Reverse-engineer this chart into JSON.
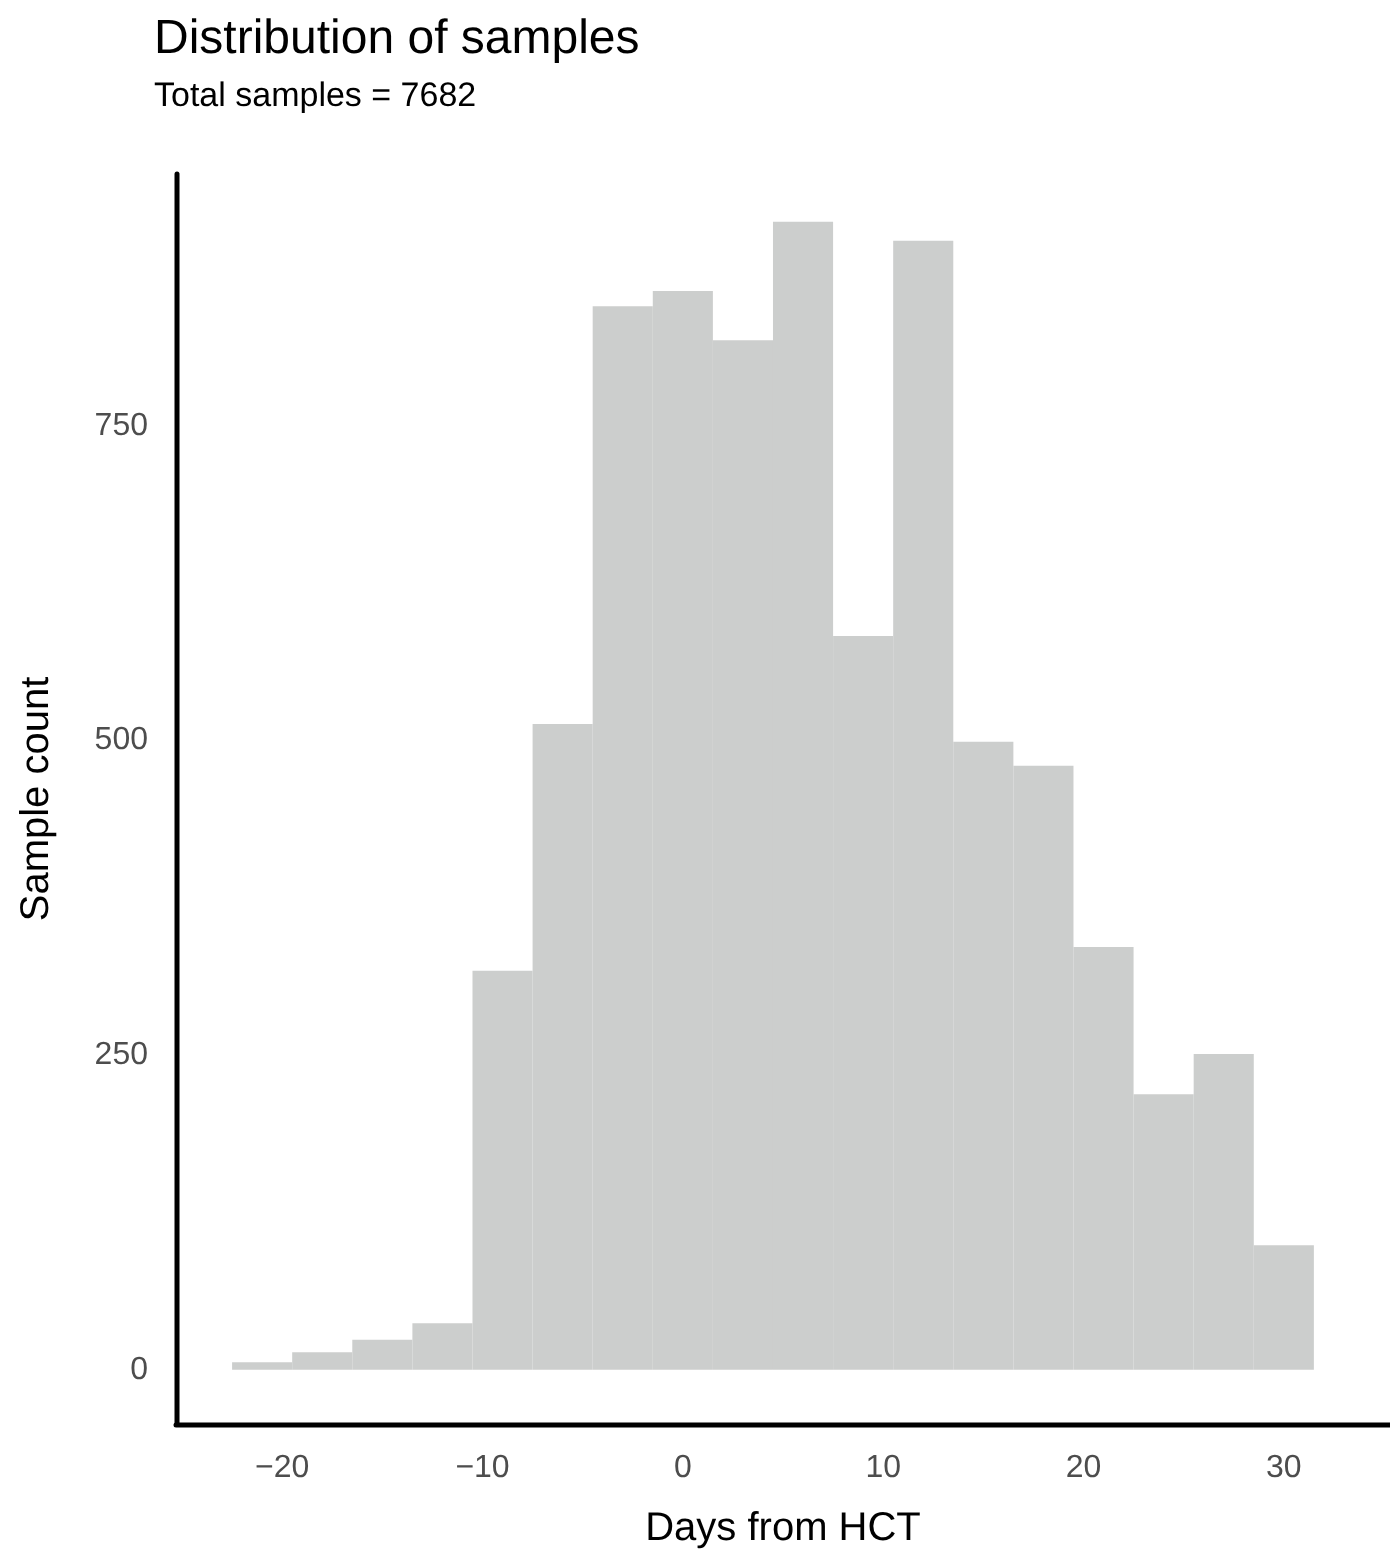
{
  "chart_data": {
    "type": "histogram",
    "title": "Distribution of samples",
    "subtitle": "Total samples = 7682",
    "xlabel": "Days from HCT",
    "ylabel": "Sample count",
    "bins": [
      -22.5,
      -19.5,
      -16.5,
      -13.5,
      -10.5,
      -7.5,
      -4.5,
      -1.5,
      1.5,
      4.5,
      7.5,
      10.5,
      13.5,
      16.5,
      19.5,
      22.5,
      25.5,
      28.5,
      31.5
    ],
    "values": [
      6,
      14,
      24,
      37,
      317,
      513,
      845,
      857,
      818,
      912,
      583,
      897,
      499,
      480,
      336,
      219,
      251,
      99
    ],
    "color": "#cccecd",
    "xlim": [
      -25.3,
      35.3
    ],
    "xticks": [
      {
        "value": -20,
        "label": "−20"
      },
      {
        "value": -10,
        "label": "−10"
      },
      0,
      10,
      20,
      30
    ],
    "ylim": [
      -43,
      950
    ],
    "yticks": [
      0,
      250,
      500,
      750
    ],
    "grid": false
  }
}
